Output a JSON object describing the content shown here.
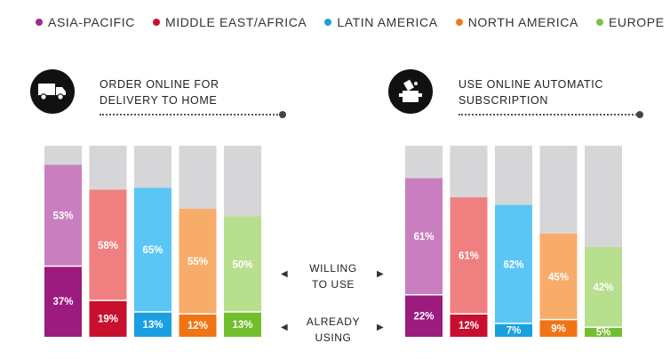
{
  "legend": [
    {
      "label": "ASIA-PACIFIC",
      "color": "#9b2a8e"
    },
    {
      "label": "MIDDLE EAST/AFRICA",
      "color": "#c8102e"
    },
    {
      "label": "LATIN AMERICA",
      "color": "#1a9fe0"
    },
    {
      "label": "NORTH AMERICA",
      "color": "#f07a1a"
    },
    {
      "label": "EUROPE",
      "color": "#7cc242"
    }
  ],
  "left_panel": {
    "title": "ORDER ONLINE FOR\nDELIVERY TO HOME",
    "icon": "delivery-truck-icon"
  },
  "right_panel": {
    "title": "USE ONLINE AUTOMATIC\nSUBSCRIPTION",
    "icon": "subscription-box-icon"
  },
  "middle_labels": {
    "willing": "WILLING\nTO USE",
    "already": "ALREADY\nUSING"
  },
  "chart_data": [
    {
      "type": "bar",
      "stacked": true,
      "title": "ORDER ONLINE FOR DELIVERY TO HOME",
      "categories": [
        "ASIA-PACIFIC",
        "MIDDLE EAST/AFRICA",
        "LATIN AMERICA",
        "NORTH AMERICA",
        "EUROPE"
      ],
      "series": [
        {
          "name": "ALREADY USING",
          "values": [
            37,
            19,
            13,
            12,
            13
          ]
        },
        {
          "name": "WILLING TO USE",
          "values": [
            53,
            58,
            65,
            55,
            50
          ]
        }
      ],
      "value_labels": {
        "already": [
          "37%",
          "19%",
          "13%",
          "12%",
          "13%"
        ],
        "willing": [
          "53%",
          "58%",
          "65%",
          "55%",
          "50%"
        ]
      },
      "ylim": [
        0,
        100
      ]
    },
    {
      "type": "bar",
      "stacked": true,
      "title": "USE ONLINE AUTOMATIC SUBSCRIPTION",
      "categories": [
        "ASIA-PACIFIC",
        "MIDDLE EAST/AFRICA",
        "LATIN AMERICA",
        "NORTH AMERICA",
        "EUROPE"
      ],
      "series": [
        {
          "name": "ALREADY USING",
          "values": [
            22,
            12,
            7,
            9,
            5
          ]
        },
        {
          "name": "WILLING TO USE",
          "values": [
            61,
            61,
            62,
            45,
            42
          ]
        }
      ],
      "value_labels": {
        "already": [
          "22%",
          "12%",
          "7%",
          "9%",
          "5%"
        ],
        "willing": [
          "61%",
          "61%",
          "62%",
          "45%",
          "42%"
        ]
      },
      "ylim": [
        0,
        100
      ]
    }
  ],
  "colors": {
    "already": [
      "#9b1b7e",
      "#c8102e",
      "#1a9fe0",
      "#ef7414",
      "#72bf2e"
    ],
    "willing": [
      "#c97fbf",
      "#f08080",
      "#5bc6f5",
      "#f8ac6a",
      "#b8df8e"
    ],
    "remainder": "#d6d6d8"
  }
}
